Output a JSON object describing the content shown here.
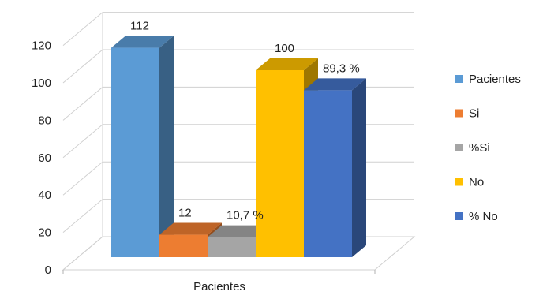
{
  "chart_data": {
    "type": "bar",
    "style": "3d-clustered-column",
    "categories": [
      "Pacientes"
    ],
    "series": [
      {
        "name": "Pacientes",
        "values": [
          112
        ],
        "label": "112",
        "color": "#5B9BD5"
      },
      {
        "name": "Si",
        "values": [
          12
        ],
        "label": "12",
        "color": "#ED7D31"
      },
      {
        "name": "%Si",
        "values": [
          10.7
        ],
        "label": "10,7 %",
        "color": "#A5A5A5"
      },
      {
        "name": "No",
        "values": [
          100
        ],
        "label": "100",
        "color": "#FFC000"
      },
      {
        "name": "% No",
        "values": [
          89.3
        ],
        "label": "89,3 %",
        "color": "#4472C4"
      }
    ],
    "yticks": [
      "0",
      "20",
      "40",
      "60",
      "80",
      "100",
      "120"
    ],
    "ylim": [
      0,
      120
    ],
    "grid": true,
    "legend_position": "right"
  }
}
